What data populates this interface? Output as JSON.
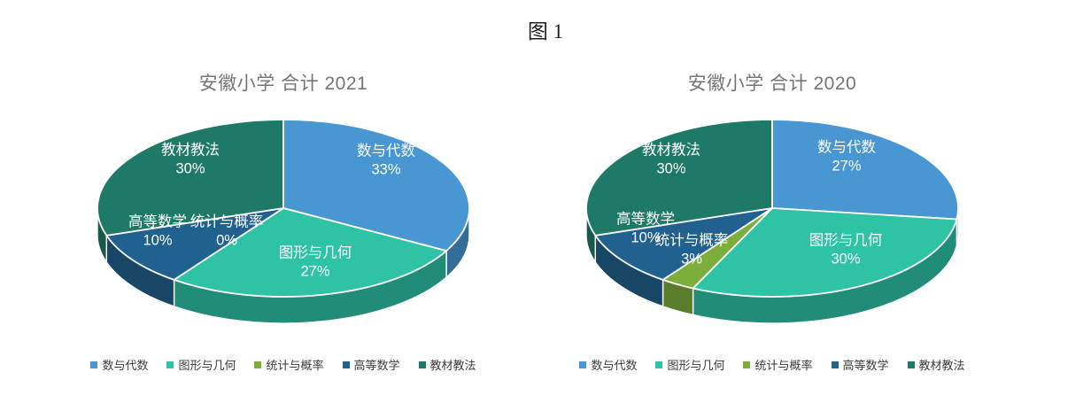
{
  "figure_title": "图 1",
  "chart_data": [
    {
      "type": "pie",
      "style": "3d",
      "title": "安徽小学 合计 2021",
      "categories": [
        "数与代数",
        "图形与几何",
        "统计与概率",
        "高等数学",
        "教材教法"
      ],
      "values_percent": [
        33,
        27,
        0,
        10,
        30
      ],
      "colors": [
        "#4897D3",
        "#2EC3A5",
        "#7CAE3C",
        "#20618F",
        "#1E7A67"
      ],
      "data_label_format": "name + percent",
      "legend_position": "bottom"
    },
    {
      "type": "pie",
      "style": "3d",
      "title": "安徽小学 合计 2020",
      "categories": [
        "数与代数",
        "图形与几何",
        "统计与概率",
        "高等数学",
        "教材教法"
      ],
      "values_percent": [
        27,
        30,
        3,
        10,
        30
      ],
      "colors": [
        "#4897D3",
        "#2EC3A5",
        "#7CAE3C",
        "#20618F",
        "#1E7A67"
      ],
      "data_label_format": "name + percent",
      "legend_position": "bottom"
    }
  ]
}
